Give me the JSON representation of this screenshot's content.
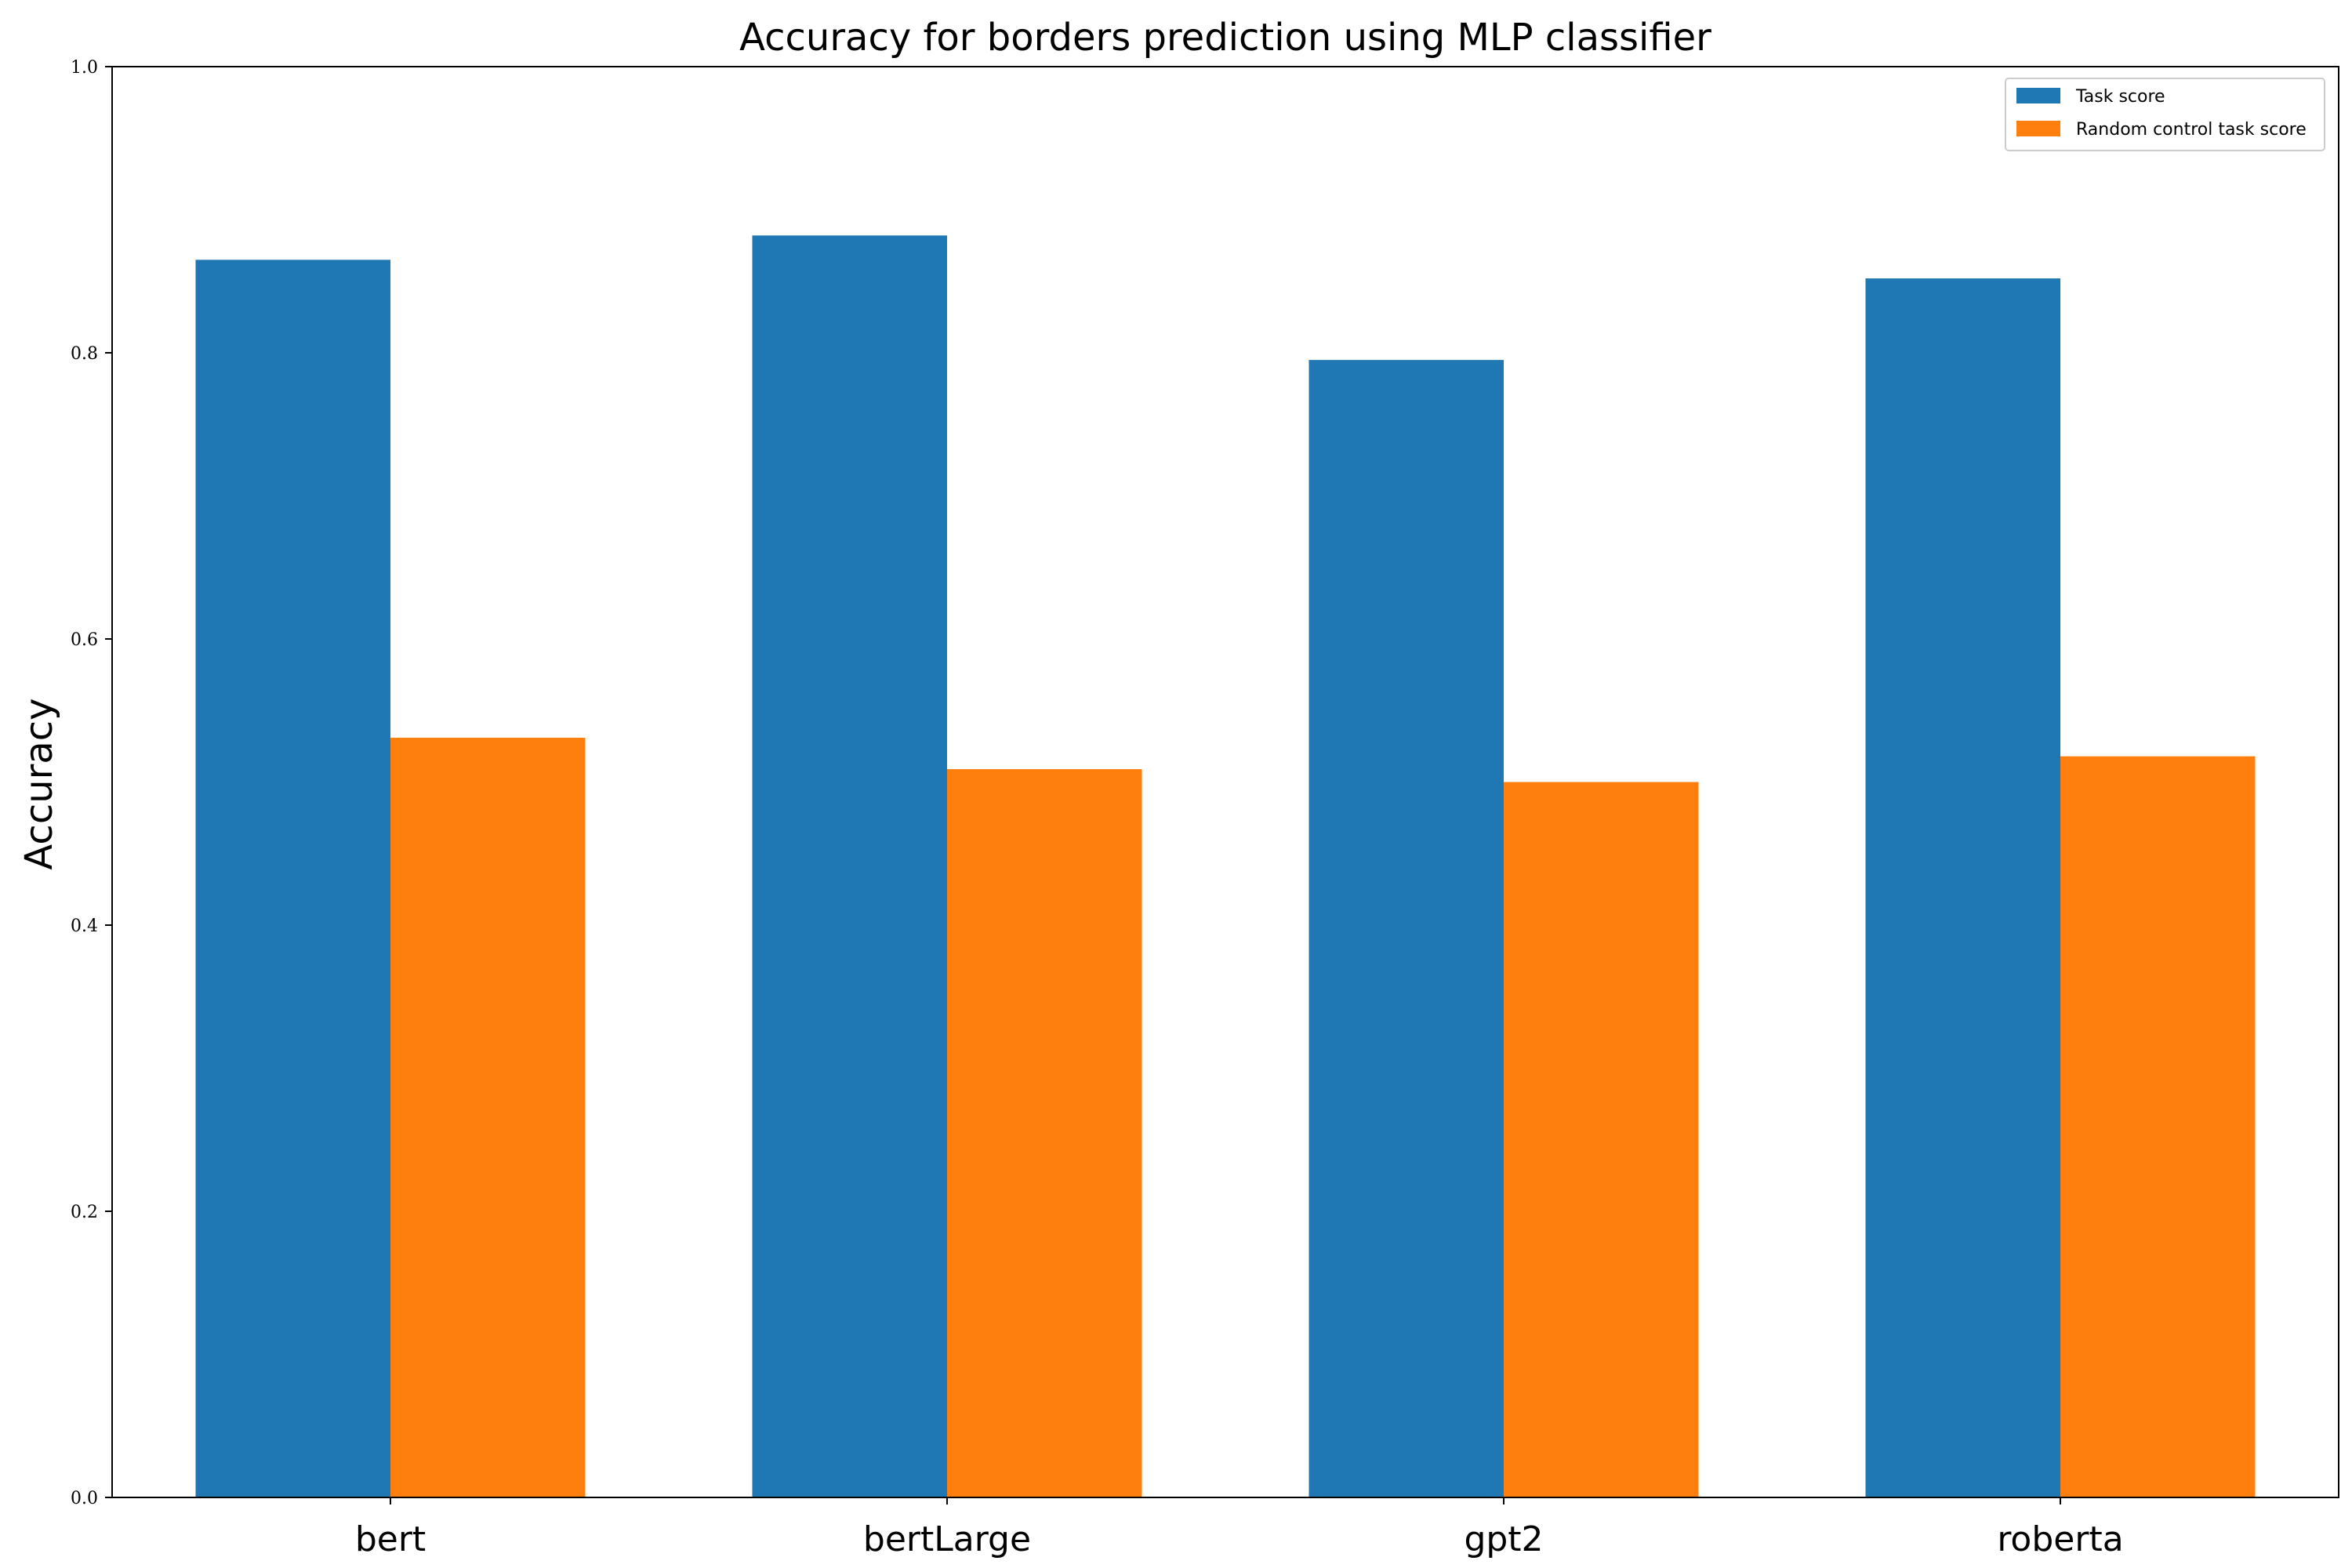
{
  "chart_data": {
    "type": "bar",
    "title": "Accuracy for borders prediction using MLP classifier",
    "xlabel": "",
    "ylabel": "Accuracy",
    "categories": [
      "bert",
      "bertLarge",
      "gpt2",
      "roberta"
    ],
    "series": [
      {
        "name": "Task score",
        "color": "#1f77b4",
        "values": [
          0.865,
          0.882,
          0.795,
          0.852
        ]
      },
      {
        "name": "Random control task score",
        "color": "#ff7f0e",
        "values": [
          0.531,
          0.509,
          0.5,
          0.518
        ]
      }
    ],
    "ylim": [
      0,
      1.0
    ],
    "yticks": [
      0.0,
      0.2,
      0.4,
      0.6,
      0.8,
      1.0
    ],
    "ytick_labels": [
      "0.0",
      "0.2",
      "0.4",
      "0.6",
      "0.8",
      "1.0"
    ],
    "grid": false,
    "legend_position": "top-right"
  }
}
